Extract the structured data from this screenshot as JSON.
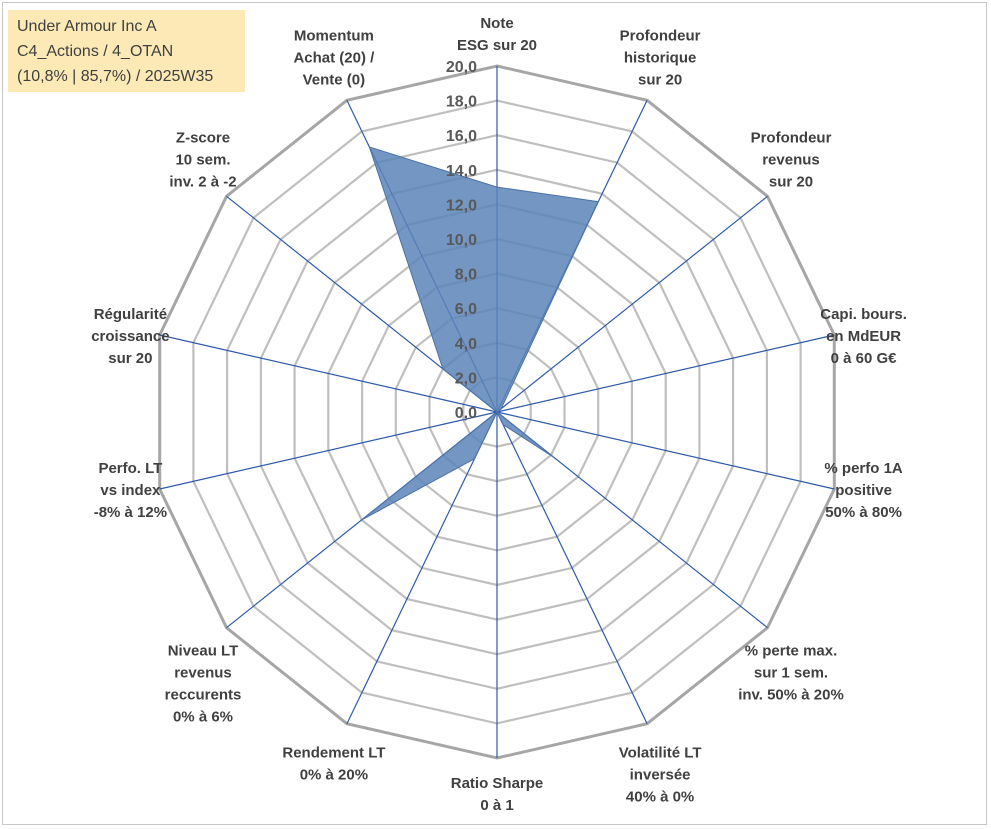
{
  "header": {
    "line1": "Under Armour Inc A",
    "line2": "C4_Actions / 4_OTAN",
    "line3": "(10,8% | 85,7%) / 2025W35"
  },
  "chart_data": {
    "type": "radar",
    "rmax": 20,
    "ticks": [
      "0,0",
      "2,0",
      "4,0",
      "6,0",
      "8,0",
      "10,0",
      "12,0",
      "14,0",
      "16,0",
      "18,0",
      "20,0"
    ],
    "axes": [
      {
        "label": [
          "Note",
          "ESG sur 20"
        ],
        "value": 13.0
      },
      {
        "label": [
          "Profondeur",
          "historique",
          "sur 20"
        ],
        "value": 13.5
      },
      {
        "label": [
          "Profondeur",
          "revenus",
          "sur 20"
        ],
        "value": 0.3
      },
      {
        "label": [
          "Capi. bours.",
          "en MdEUR",
          "0 à 60 G€"
        ],
        "value": 0.1
      },
      {
        "label": [
          "% perfo 1A",
          "positive",
          "50% à 80%"
        ],
        "value": 0.0
      },
      {
        "label": [
          "% perte max.",
          "sur 1 sem.",
          "inv. 50% à 20%"
        ],
        "value": 4.2
      },
      {
        "label": [
          "Volatilité LT",
          "inversée",
          "40% à 0%"
        ],
        "value": 0.8
      },
      {
        "label": [
          "Ratio Sharpe",
          "0 à 1"
        ],
        "value": 0.0
      },
      {
        "label": [
          "Rendement LT",
          "0% à 20%"
        ],
        "value": 3.0
      },
      {
        "label": [
          "Niveau LT",
          "revenus",
          "reccurents",
          "0% à 6%"
        ],
        "value": 10.0
      },
      {
        "label": [
          "Perfo. LT",
          "vs index",
          "-8% à 12%"
        ],
        "value": 0.0
      },
      {
        "label": [
          "Régularité",
          "croissance",
          "sur 20"
        ],
        "value": 0.0
      },
      {
        "label": [
          "Z-score",
          "10 sem.",
          "inv. 2 à -2"
        ],
        "value": 4.0
      },
      {
        "label": [
          "Momentum",
          "Achat (20) /",
          "Vente (0)"
        ],
        "value": 17.0
      }
    ],
    "colors": {
      "fill": "#5b84b8",
      "fill_stroke": "#4a72a8",
      "spoke": "#2e5aa8",
      "grid": "#bfbfbf",
      "grid_outer": "#a6a6a6"
    }
  }
}
